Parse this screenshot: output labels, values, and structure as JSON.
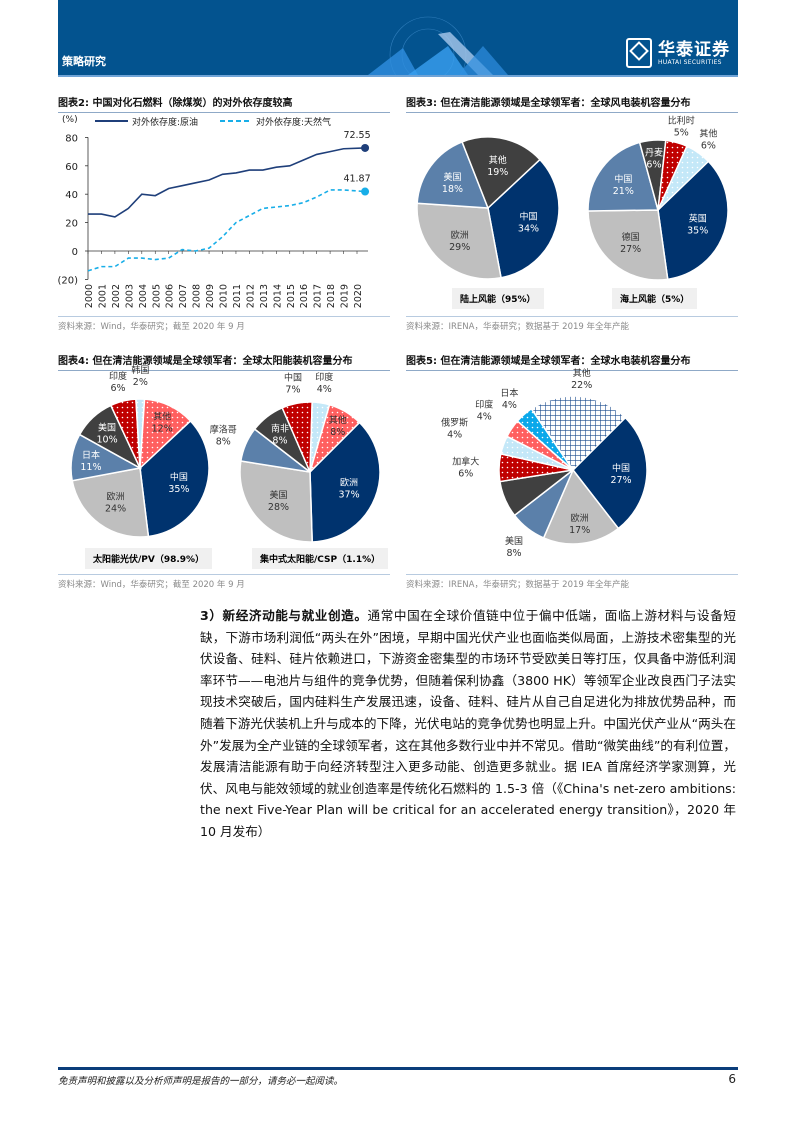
{
  "header": {
    "section": "策略研究",
    "logo_cn": "华泰证券",
    "logo_en": "HUATAI SECURITIES"
  },
  "fig2": {
    "title": "图表2:  中国对化石燃料（除煤炭）的对外依存度较高",
    "source": "资料来源：Wind，华泰研究；截至 2020 年 9 月"
  },
  "fig3": {
    "title": "图表3:  但在清洁能源领域是全球领军者：全球风电装机容量分布",
    "source": "资料来源：IRENA，华泰研究；数据基于 2019 年全年产能",
    "cap_left": "陆上风能（95%）",
    "cap_right": "海上风能（5%）"
  },
  "fig4": {
    "title": "图表4:  但在清洁能源领域是全球领军者：全球太阳能装机容量分布",
    "source": "资料来源：Wind，华泰研究；截至 2020 年 9 月",
    "cap_left": "太阳能光伏/PV（98.9%）",
    "cap_right": "集中式太阳能/CSP（1.1%）"
  },
  "fig5": {
    "title": "图表5:  但在清洁能源领域是全球领军者：全球水电装机容量分布",
    "source": "资料来源：IRENA，华泰研究；数据基于 2019 年全年产能"
  },
  "chart_data": [
    {
      "type": "line",
      "id": "fig2",
      "ylabel": "(%)",
      "ylim": [
        -20,
        80
      ],
      "yticks": [
        "(20)",
        "0",
        "20",
        "40",
        "60",
        "80"
      ],
      "ytick_values": [
        -20,
        0,
        20,
        40,
        60,
        80
      ],
      "x": [
        2000,
        2001,
        2002,
        2003,
        2004,
        2005,
        2006,
        2007,
        2008,
        2009,
        2010,
        2011,
        2012,
        2013,
        2014,
        2015,
        2016,
        2017,
        2018,
        2019,
        2020
      ],
      "xtick_labels": [
        "2000",
        "2001",
        "2002",
        "2003",
        "2004",
        "2005",
        "2006",
        "2007",
        "2008",
        "2009",
        "2010",
        "2011",
        "2012",
        "2013",
        "2014",
        "2015",
        "2016",
        "2017",
        "2018",
        "2019",
        "2020"
      ],
      "series": [
        {
          "name": "对外依存度:原油",
          "style": "solid",
          "color": "#1f3f7a",
          "values": [
            26,
            26,
            24,
            30,
            40,
            39,
            44,
            46,
            48,
            50,
            54,
            55,
            57,
            57,
            59,
            60,
            64,
            68,
            70,
            72,
            72.55
          ],
          "end_label": "72.55"
        },
        {
          "name": "对外依存度:天然气",
          "style": "dashed",
          "color": "#18aee8",
          "values": [
            -14,
            -11,
            -11,
            -5,
            -5,
            -6,
            -5,
            1,
            0,
            2,
            10,
            20,
            25,
            30,
            31,
            32,
            34,
            38,
            43,
            43,
            41.87
          ],
          "end_label": "41.87"
        }
      ]
    },
    {
      "type": "pie",
      "id": "fig3-onshore",
      "slices": [
        {
          "label": "中国",
          "value": 34,
          "pct": "34%"
        },
        {
          "label": "欧洲",
          "value": 29,
          "pct": "29%"
        },
        {
          "label": "美国",
          "value": 18,
          "pct": "18%"
        },
        {
          "label": "其他",
          "value": 19,
          "pct": "19%"
        }
      ]
    },
    {
      "type": "pie",
      "id": "fig3-offshore",
      "slices": [
        {
          "label": "英国",
          "value": 35,
          "pct": "35%"
        },
        {
          "label": "德国",
          "value": 27,
          "pct": "27%"
        },
        {
          "label": "中国",
          "value": 21,
          "pct": "21%"
        },
        {
          "label": "丹麦",
          "value": 6,
          "pct": "6%"
        },
        {
          "label": "比利时",
          "value": 5,
          "pct": "5%"
        },
        {
          "label": "其他",
          "value": 6,
          "pct": "6%"
        }
      ]
    },
    {
      "type": "pie",
      "id": "fig4-pv",
      "slices": [
        {
          "label": "中国",
          "value": 35,
          "pct": "35%"
        },
        {
          "label": "欧洲",
          "value": 24,
          "pct": "24%"
        },
        {
          "label": "日本",
          "value": 11,
          "pct": "11%"
        },
        {
          "label": "美国",
          "value": 10,
          "pct": "10%"
        },
        {
          "label": "印度",
          "value": 6,
          "pct": "6%"
        },
        {
          "label": "韩国",
          "value": 2,
          "pct": "2%"
        },
        {
          "label": "其他",
          "value": 12,
          "pct": "12%"
        }
      ]
    },
    {
      "type": "pie",
      "id": "fig4-csp",
      "slices": [
        {
          "label": "欧洲",
          "value": 37,
          "pct": "37%"
        },
        {
          "label": "美国",
          "value": 28,
          "pct": "28%"
        },
        {
          "label": "摩洛哥",
          "value": 8,
          "pct": "8%"
        },
        {
          "label": "南非",
          "value": 8,
          "pct": "8%"
        },
        {
          "label": "中国",
          "value": 7,
          "pct": "7%"
        },
        {
          "label": "印度",
          "value": 4,
          "pct": "4%"
        },
        {
          "label": "其他",
          "value": 8,
          "pct": "8%"
        }
      ]
    },
    {
      "type": "pie",
      "id": "fig5-hydro",
      "slices": [
        {
          "label": "中国",
          "value": 27,
          "pct": "27%"
        },
        {
          "label": "欧洲",
          "value": 17,
          "pct": "17%"
        },
        {
          "label": "美国",
          "value": 8,
          "pct": "8%"
        },
        {
          "label": "",
          "value": 8,
          "pct": ""
        },
        {
          "label": "加拿大",
          "value": 6,
          "pct": "6%"
        },
        {
          "label": "俄罗斯",
          "value": 4,
          "pct": "4%"
        },
        {
          "label": "印度",
          "value": 4,
          "pct": "4%"
        },
        {
          "label": "日本",
          "value": 4,
          "pct": "4%"
        },
        {
          "label": "其他",
          "value": 22,
          "pct": "22%"
        }
      ]
    }
  ],
  "body": {
    "lead": "3）新经济动能与就业创造。",
    "text": "通常中国在全球价值链中位于偏中低端，面临上游材料与设备短缺，下游市场利润低“两头在外”困境，早期中国光伏产业也面临类似局面，上游技术密集型的光伏设备、硅料、硅片依赖进口，下游资金密集型的市场环节受欧美日等打压，仅具备中游低利润率环节——电池片与组件的竞争优势，但随着保利协鑫（3800 HK）等领军企业改良西门子法实现技术突破后，国内硅料生产发展迅速，设备、硅料、硅片从自己自足进化为排放优势品种，而随着下游光伏装机上升与成本的下降，光伏电站的竞争优势也明显上升。中国光伏产业从“两头在外”发展为全产业链的全球领军者，这在其他多数行业中并不常见。借助“微笑曲线”的有利位置，发展清洁能源有助于向经济转型注入更多动能、创造更多就业。据 IEA 首席经济学家测算，光伏、风电与能效领域的就业创造率是传统化石燃料的 1.5-3 倍（《China's net-zero ambitions: the next Five-Year Plan will be critical for an accelerated energy transition》，2020 年 10 月发布）"
  },
  "footer": {
    "disclaimer": "免责声明和披露以及分析师声明是报告的一部分，请务必一起阅读。",
    "page": "6"
  },
  "colors": {
    "navy": "#00336e",
    "grey": "#bfbfbf",
    "steel": "#5b80aa",
    "dark": "#404040",
    "red": "#c00000",
    "lightred": "#ff5f5f",
    "lightblue": "#c4e8f8",
    "sky": "#0aa8ea"
  }
}
